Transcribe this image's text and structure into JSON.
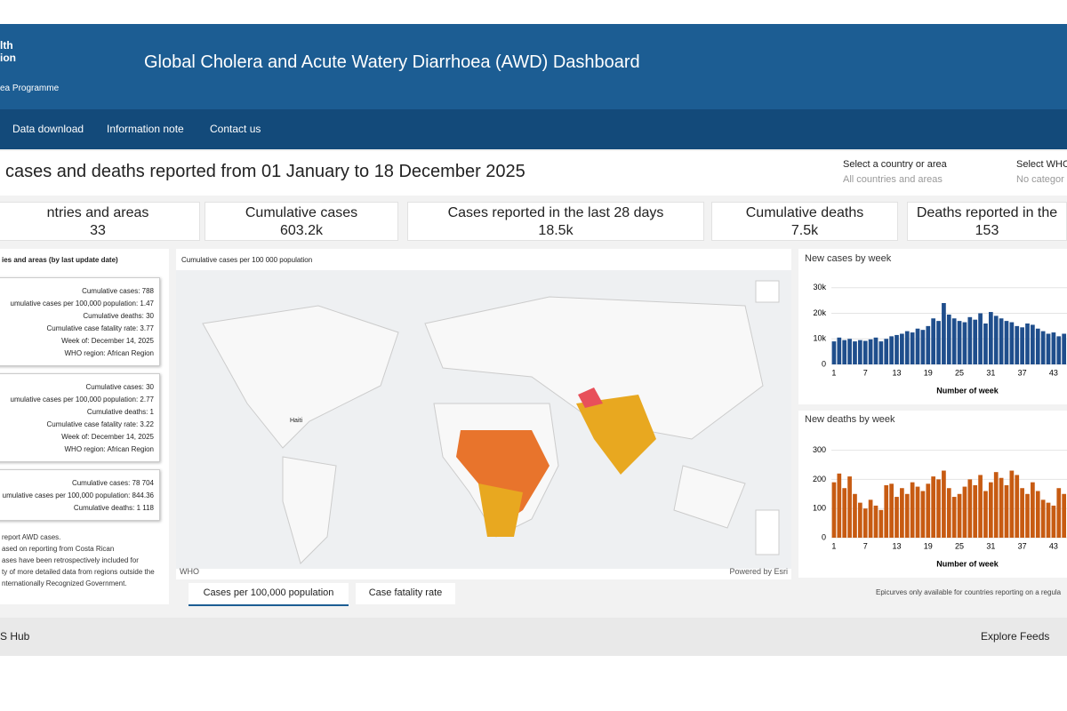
{
  "header": {
    "logo_line1": "lth",
    "logo_line2": "ion",
    "programme": "ea Programme",
    "title": "Global Cholera and Acute Watery Diarrhoea (AWD) Dashboard"
  },
  "nav": [
    "Data download",
    "Information note",
    "Contact us"
  ],
  "headline": "cases and deaths reported from 01 January to 18 December 2025",
  "filters": [
    {
      "label": "Select a country or area",
      "value": "All countries and areas"
    },
    {
      "label": "Select WHO",
      "value": "No categor"
    }
  ],
  "kpis": [
    {
      "label": "ntries and areas",
      "value": "33"
    },
    {
      "label": "Cumulative cases",
      "value": "603.2k"
    },
    {
      "label": "Cases reported in the last 28 days",
      "value": "18.5k"
    },
    {
      "label": "Cumulative deaths",
      "value": "7.5k"
    },
    {
      "label": "Deaths reported in the",
      "value": "153"
    }
  ],
  "list": {
    "title": "ies and areas (by last update date)",
    "cards": [
      [
        "Cumulative cases: 788",
        "umulative cases per 100,000 population: 1.47",
        "Cumulative deaths: 30",
        "Cumulative case fatality rate: 3.77",
        "Week of: December 14, 2025",
        "WHO region: African Region"
      ],
      [
        "Cumulative cases: 30",
        "umulative cases per 100,000 population: 2.77",
        "Cumulative deaths: 1",
        "Cumulative case fatality rate: 3.22",
        "Week of: December 14, 2025",
        "WHO region: African Region"
      ],
      [
        "Cumulative cases: 78 704",
        "umulative cases per 100,000 population: 844.36",
        "Cumulative deaths: 1 118"
      ]
    ],
    "notes": [
      "report AWD cases.",
      "ased on reporting from Costa Rican",
      "ases have been retrospectively included for",
      "ty of more detailed data from regions outside the",
      "nternationally Recognized Government."
    ]
  },
  "map": {
    "title": "Cumulative cases per 100 000 population",
    "place": "Haiti",
    "credit_left": "WHO",
    "credit_right": "Powered by Esri",
    "tabs": [
      "Cases per 100,000 population",
      "Case fatality rate"
    ]
  },
  "chart_data": [
    {
      "type": "bar",
      "title": "New cases by week",
      "x_label": "Number of week",
      "color": "#1f4e8c",
      "categories": [
        1,
        null,
        null,
        null,
        null,
        null,
        7,
        null,
        null,
        null,
        null,
        null,
        13,
        null,
        null,
        null,
        null,
        null,
        19,
        null,
        null,
        null,
        null,
        null,
        25,
        null,
        null,
        null,
        null,
        null,
        31,
        null,
        null,
        null,
        null,
        null,
        37,
        null,
        null,
        null,
        null,
        null,
        43,
        null,
        null
      ],
      "values": [
        9000,
        10500,
        9500,
        10000,
        9000,
        9500,
        9200,
        9800,
        10500,
        9000,
        10000,
        11000,
        11500,
        12000,
        13000,
        12500,
        14000,
        13500,
        15000,
        18000,
        17000,
        24000,
        19500,
        18000,
        17000,
        16500,
        18500,
        17500,
        20000,
        16000,
        20500,
        19000,
        18000,
        17000,
        16500,
        15000,
        14500,
        16000,
        15500,
        14000,
        13000,
        12000,
        12500,
        11000,
        12000
      ],
      "ylim": [
        0,
        32000
      ],
      "yticks": [
        0,
        {
          "value": 10000,
          "label": "10k"
        },
        {
          "value": 20000,
          "label": "20k"
        },
        {
          "value": 30000,
          "label": "30k"
        }
      ]
    },
    {
      "type": "bar",
      "title": "New deaths by week",
      "x_label": "Number of week",
      "color": "#c75b12",
      "categories": [
        1,
        null,
        null,
        null,
        null,
        null,
        7,
        null,
        null,
        null,
        null,
        null,
        13,
        null,
        null,
        null,
        null,
        null,
        19,
        null,
        null,
        null,
        null,
        null,
        25,
        null,
        null,
        null,
        null,
        null,
        31,
        null,
        null,
        null,
        null,
        null,
        37,
        null,
        null,
        null,
        null,
        null,
        43,
        null,
        null
      ],
      "values": [
        190,
        220,
        170,
        210,
        150,
        120,
        100,
        130,
        110,
        95,
        180,
        185,
        140,
        170,
        150,
        190,
        175,
        160,
        185,
        210,
        200,
        230,
        170,
        140,
        150,
        175,
        200,
        180,
        215,
        160,
        190,
        225,
        205,
        180,
        230,
        215,
        170,
        150,
        190,
        160,
        130,
        120,
        110,
        170,
        150
      ],
      "ylim": [
        0,
        320
      ],
      "yticks": [
        0,
        100,
        200,
        300
      ]
    }
  ],
  "epicurve_note": "Epicurves only available for countries reporting on a regula",
  "footer": {
    "left": "S Hub",
    "right": "Explore Feeds"
  }
}
